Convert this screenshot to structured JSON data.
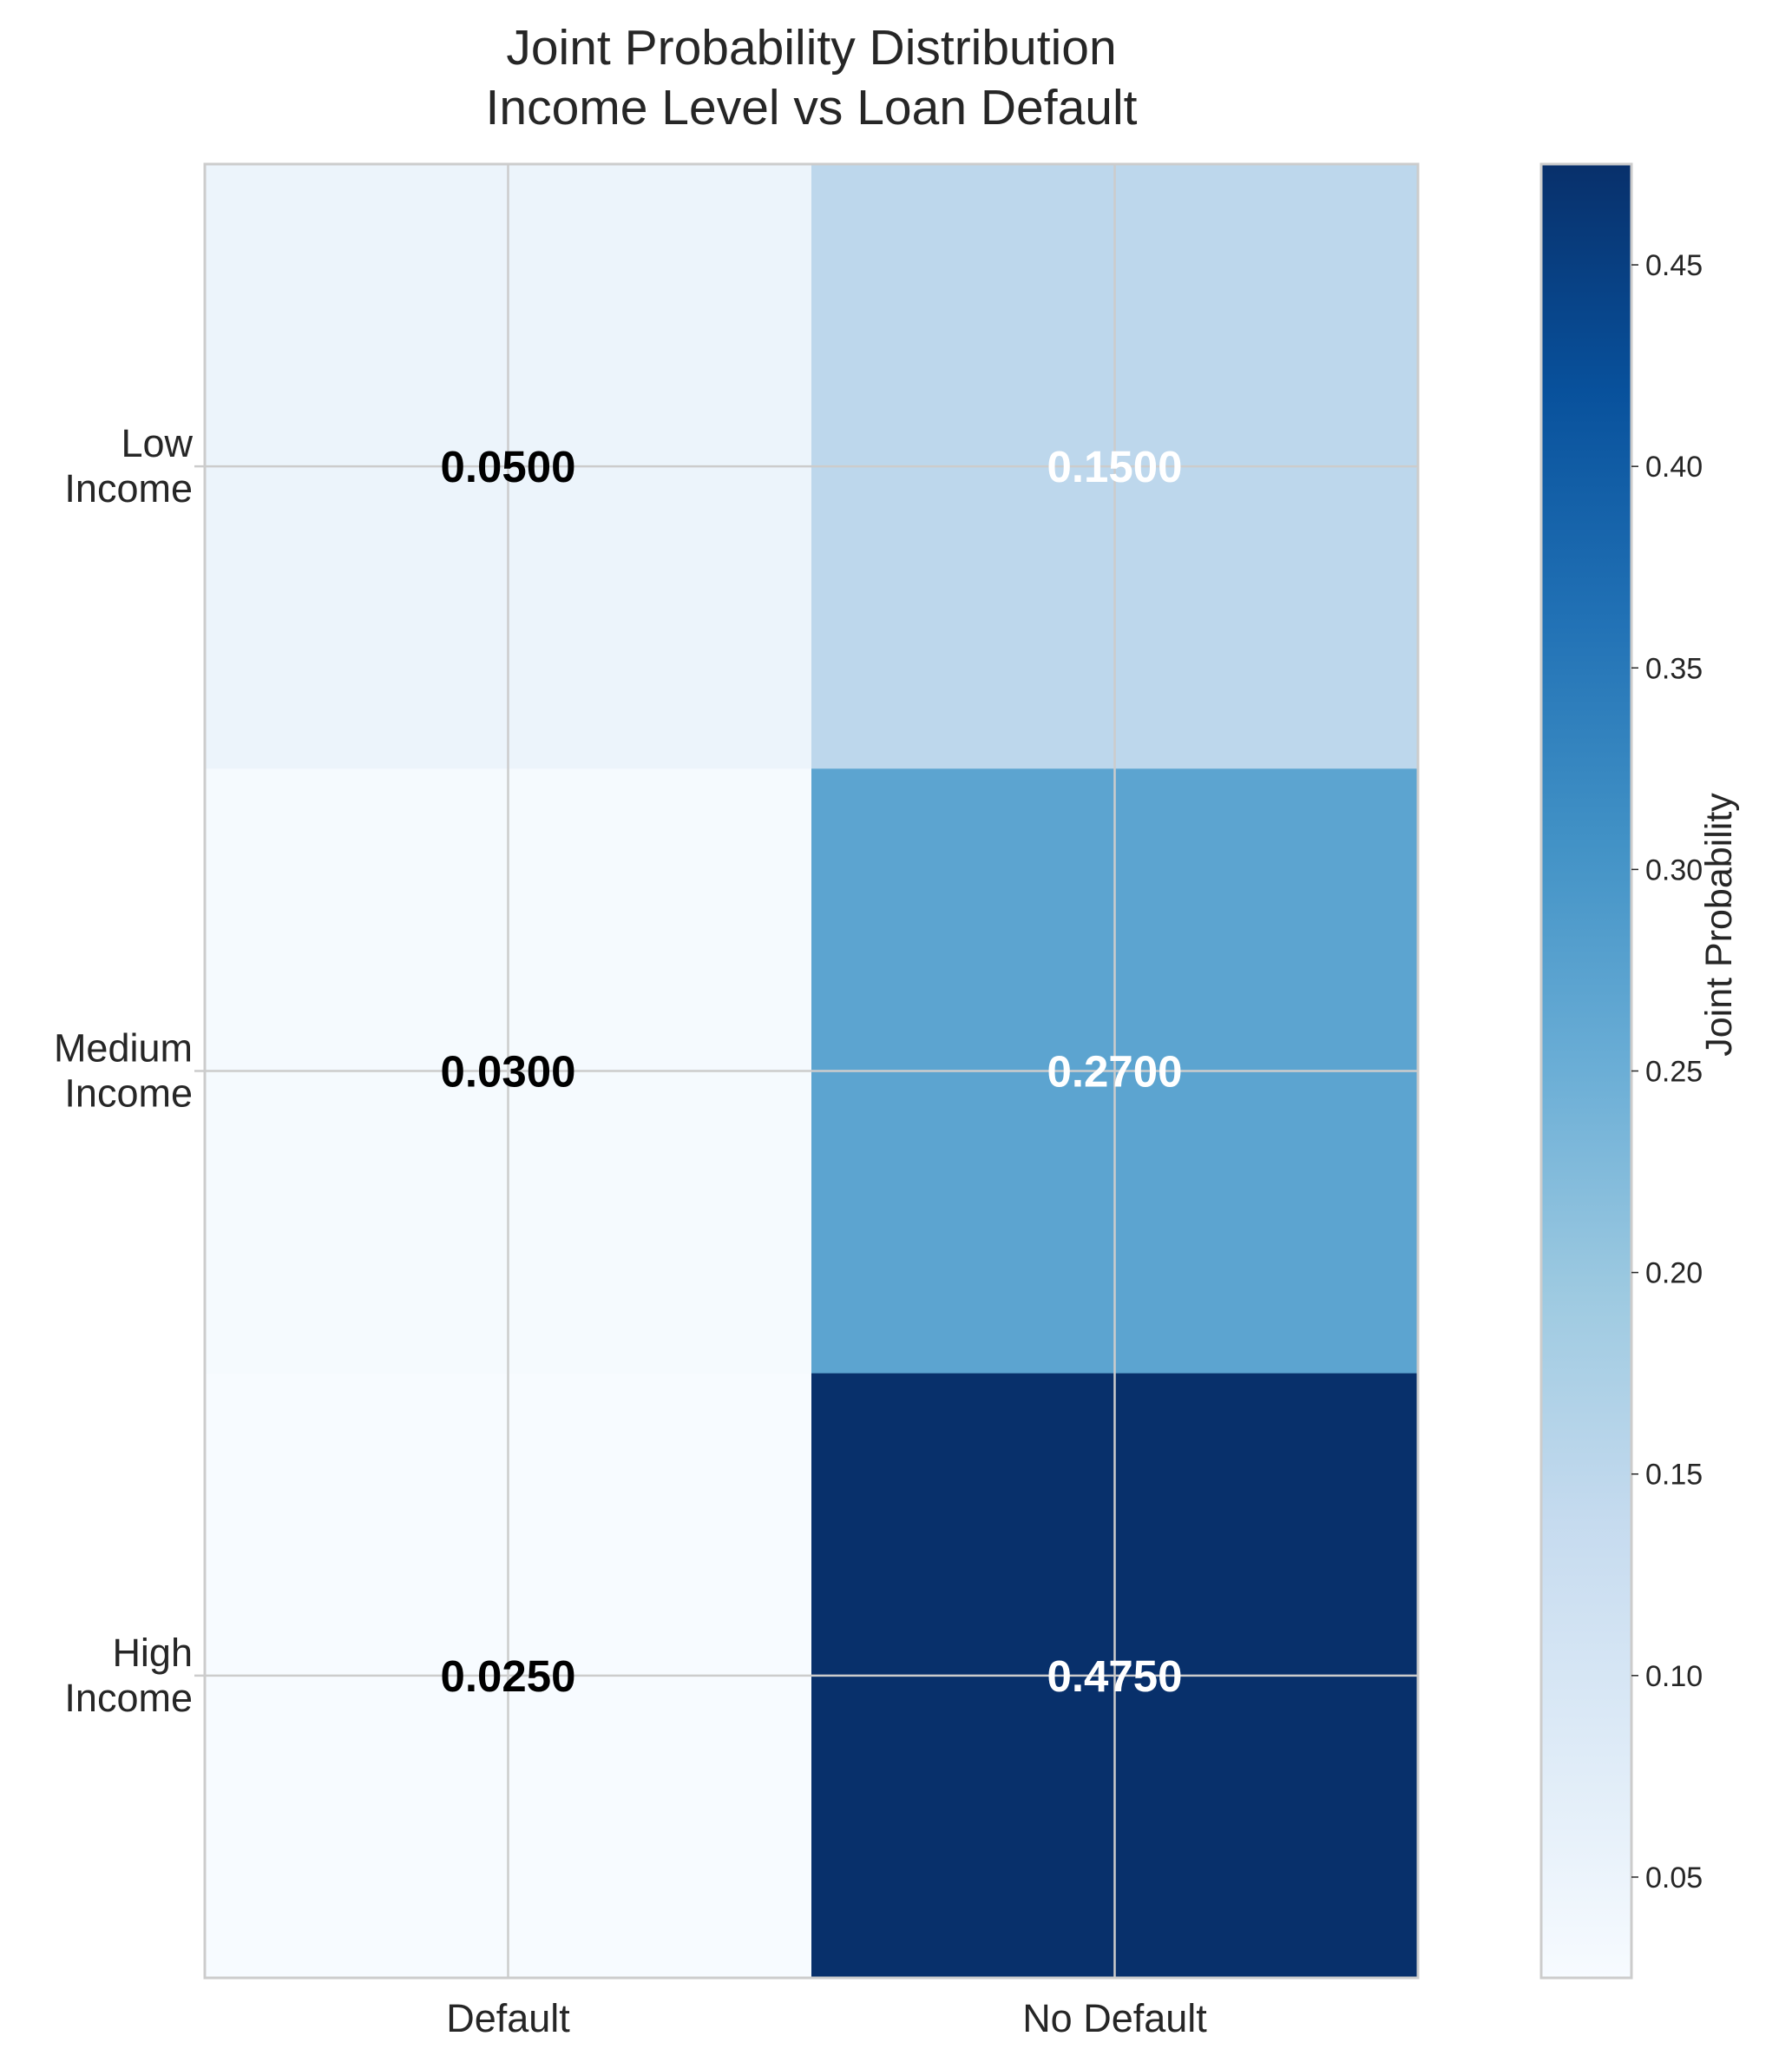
{
  "chart_data": {
    "type": "heatmap",
    "title_lines": [
      "Joint Probability Distribution",
      "Income Level vs Loan Default"
    ],
    "rows": [
      {
        "label_lines": [
          "Low",
          "Income"
        ]
      },
      {
        "label_lines": [
          "Medium",
          "Income"
        ]
      },
      {
        "label_lines": [
          "High",
          "Income"
        ]
      }
    ],
    "columns": [
      "Default",
      "No Default"
    ],
    "values": [
      [
        0.05,
        0.15
      ],
      [
        0.03,
        0.27
      ],
      [
        0.025,
        0.475
      ]
    ],
    "cell_labels": [
      [
        "0.0500",
        "0.1500"
      ],
      [
        "0.0300",
        "0.2700"
      ],
      [
        "0.0250",
        "0.4750"
      ]
    ],
    "colormap": "Blues",
    "colorbar": {
      "label": "Joint Probability",
      "range": [
        0.025,
        0.475
      ],
      "ticks": [
        0.05,
        0.1,
        0.15,
        0.2,
        0.25,
        0.3,
        0.35,
        0.4,
        0.45
      ],
      "tick_labels": [
        "0.05",
        "0.10",
        "0.15",
        "0.20",
        "0.25",
        "0.30",
        "0.35",
        "0.40",
        "0.45"
      ]
    },
    "grid": true,
    "colors": {
      "grid": "#cccccc",
      "text": "#262626",
      "label_dark": "#000000",
      "label_light": "#ffffff"
    }
  }
}
